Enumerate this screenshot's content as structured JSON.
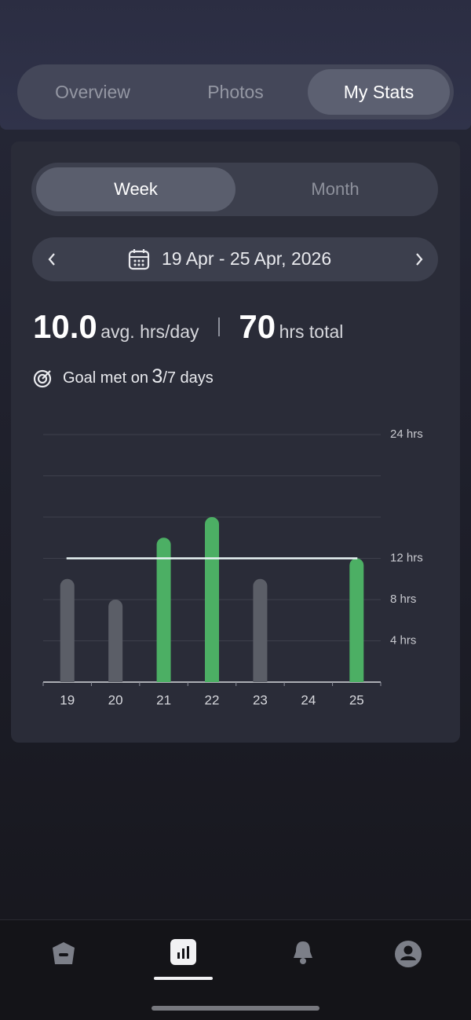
{
  "tabs": [
    "Overview",
    "Photos",
    "My Stats"
  ],
  "period_tabs": [
    "Week",
    "Month"
  ],
  "date_range": "19 Apr - 25 Apr, 2026",
  "stats": {
    "avg_value": "10.0",
    "avg_label": "avg. hrs/day",
    "total_value": "70",
    "total_label": "hrs total"
  },
  "goal": {
    "prefix": "Goal met on",
    "met": "3",
    "suffix": "/7 days"
  },
  "chart_data": {
    "type": "bar",
    "categories": [
      "19",
      "20",
      "21",
      "22",
      "23",
      "24",
      "25"
    ],
    "values": [
      10,
      8,
      14,
      16,
      10,
      0,
      12
    ],
    "colors": [
      "#5b5e67",
      "#5b5e67",
      "#4caf64",
      "#4caf64",
      "#5b5e67",
      "#5b5e67",
      "#4caf64"
    ],
    "goal_line": 12,
    "goal_color": "#e8f4f4",
    "ylim": [
      0,
      24
    ],
    "yticks": [
      {
        "value": 24,
        "label": "24 hrs"
      },
      {
        "value": 12,
        "label": "12 hrs"
      },
      {
        "value": 8,
        "label": "8 hrs"
      },
      {
        "value": 4,
        "label": "4 hrs"
      }
    ],
    "grid_values": [
      4,
      8,
      12,
      16,
      20,
      24
    ],
    "grid": true
  }
}
